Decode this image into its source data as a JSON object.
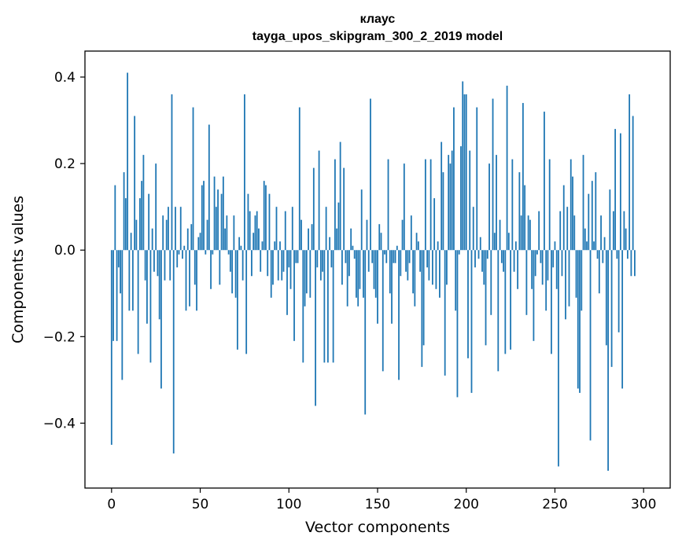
{
  "chart_data": {
    "type": "bar",
    "title": "клаус",
    "subtitle": "tayga_upos_skipgram_300_2_2019 model",
    "xlabel": "Vector components",
    "ylabel": "Components values",
    "xlim": [
      -15,
      315
    ],
    "ylim": [
      -0.55,
      0.46
    ],
    "xticks": [
      0,
      50,
      100,
      150,
      200,
      250,
      300
    ],
    "xtick_labels": [
      "0",
      "50",
      "100",
      "150",
      "200",
      "250",
      "300"
    ],
    "yticks": [
      -0.4,
      -0.2,
      0.0,
      0.2,
      0.4
    ],
    "ytick_labels": [
      "−0.4",
      "−0.2",
      "0.0",
      "0.2",
      "0.4"
    ],
    "bar_color": "#1f77b4",
    "grid": false,
    "values": [
      -0.45,
      -0.21,
      0.15,
      -0.21,
      -0.04,
      -0.1,
      -0.3,
      0.18,
      0.12,
      0.41,
      -0.14,
      0.04,
      -0.14,
      0.31,
      0.07,
      -0.24,
      0.12,
      0.16,
      0.22,
      -0.07,
      -0.17,
      0.13,
      -0.26,
      0.05,
      -0.05,
      0.2,
      -0.06,
      -0.16,
      -0.32,
      0.08,
      -0.07,
      0.07,
      0.1,
      -0.07,
      0.36,
      -0.47,
      0.1,
      -0.04,
      -0.01,
      0.1,
      -0.02,
      0.01,
      -0.14,
      0.05,
      -0.13,
      0.06,
      0.33,
      -0.08,
      -0.14,
      0.03,
      0.04,
      0.15,
      0.16,
      -0.01,
      0.07,
      0.29,
      -0.09,
      -0.01,
      0.17,
      0.1,
      0.14,
      -0.08,
      0.13,
      0.17,
      0.05,
      0.08,
      -0.01,
      -0.05,
      -0.1,
      0.08,
      -0.11,
      -0.23,
      0.03,
      0.01,
      -0.07,
      0.36,
      -0.24,
      0.13,
      0.09,
      -0.06,
      0.04,
      0.08,
      0.09,
      0.05,
      -0.05,
      0.02,
      0.16,
      0.15,
      -0.06,
      0.13,
      -0.11,
      -0.08,
      0.02,
      0.1,
      -0.07,
      0.02,
      -0.07,
      -0.05,
      0.09,
      -0.15,
      -0.04,
      -0.09,
      0.1,
      -0.21,
      -0.03,
      -0.03,
      0.33,
      0.07,
      -0.26,
      -0.13,
      -0.1,
      0.05,
      -0.11,
      0.06,
      0.19,
      -0.36,
      -0.04,
      0.23,
      -0.07,
      -0.05,
      -0.26,
      0.1,
      -0.26,
      0.03,
      -0.04,
      -0.26,
      0.21,
      0.05,
      0.11,
      0.25,
      -0.08,
      0.19,
      -0.03,
      -0.13,
      -0.06,
      0.05,
      0.01,
      -0.02,
      -0.11,
      -0.13,
      -0.09,
      0.14,
      -0.11,
      -0.38,
      0.07,
      -0.05,
      0.35,
      -0.03,
      -0.09,
      -0.11,
      -0.17,
      0.06,
      0.04,
      -0.28,
      -0.01,
      -0.03,
      0.21,
      -0.1,
      -0.17,
      -0.03,
      -0.03,
      0.01,
      -0.3,
      -0.06,
      0.07,
      0.2,
      -0.05,
      -0.07,
      -0.03,
      0.08,
      -0.1,
      -0.13,
      0.04,
      0.02,
      -0.05,
      -0.27,
      -0.22,
      0.21,
      -0.04,
      -0.07,
      0.21,
      -0.08,
      0.12,
      -0.09,
      0.02,
      -0.11,
      0.25,
      0.18,
      -0.29,
      -0.08,
      0.22,
      0.2,
      0.23,
      0.33,
      -0.14,
      -0.34,
      -0.01,
      0.24,
      0.39,
      0.36,
      0.36,
      -0.25,
      0.23,
      -0.33,
      0.1,
      -0.04,
      0.33,
      -0.02,
      0.03,
      -0.05,
      -0.08,
      -0.22,
      -0.02,
      0.2,
      -0.15,
      0.35,
      0.04,
      0.22,
      -0.28,
      0.07,
      -0.03,
      -0.05,
      -0.24,
      0.38,
      0.04,
      -0.23,
      0.21,
      -0.05,
      0.02,
      -0.09,
      0.18,
      0.08,
      0.34,
      0.15,
      -0.15,
      0.08,
      0.07,
      -0.09,
      -0.21,
      -0.06,
      -0.01,
      0.09,
      -0.03,
      -0.08,
      0.32,
      -0.14,
      -0.07,
      0.21,
      -0.24,
      -0.04,
      0.02,
      -0.09,
      -0.5,
      0.09,
      -0.06,
      0.15,
      -0.16,
      0.1,
      -0.13,
      0.21,
      0.17,
      0.08,
      -0.11,
      -0.32,
      -0.33,
      -0.14,
      0.22,
      0.05,
      0.02,
      0.13,
      -0.44,
      0.16,
      0.02,
      0.18,
      -0.02,
      -0.1,
      0.08,
      -0.03,
      0.03,
      -0.22,
      -0.51,
      0.14,
      -0.27,
      0.09,
      0.28,
      -0.02,
      -0.19,
      0.27,
      -0.32,
      0.09,
      0.05,
      -0.02,
      0.36,
      -0.06,
      0.31,
      -0.06
    ]
  }
}
